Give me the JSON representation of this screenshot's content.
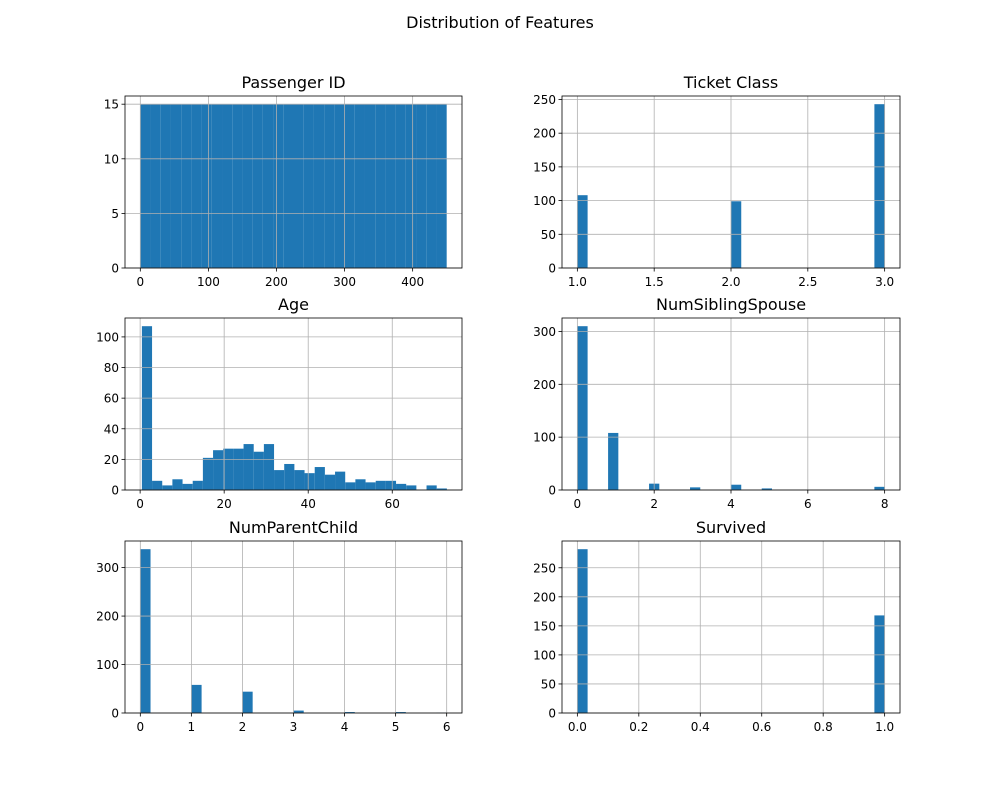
{
  "figure": {
    "title": "Distribution of Features"
  },
  "colors": {
    "bar": "#1f77b4",
    "grid": "#b0b0b0",
    "axis": "#000000"
  },
  "chart_data": [
    {
      "type": "bar",
      "title": "Passenger ID",
      "grid": true,
      "xlim": [
        -22.5,
        472.5
      ],
      "ylim": [
        0,
        15.75
      ],
      "xticks": [
        0,
        100,
        200,
        300,
        400
      ],
      "xticklabels": [
        "0",
        "100",
        "200",
        "300",
        "400"
      ],
      "yticks": [
        0,
        5,
        10,
        15
      ],
      "yticklabels": [
        "0",
        "5",
        "10",
        "15"
      ],
      "bin_range": [
        0,
        450
      ],
      "values": [
        15,
        15,
        15,
        15,
        15,
        15,
        15,
        15,
        15,
        15,
        15,
        15,
        15,
        15,
        15,
        15,
        15,
        15,
        15,
        15,
        15,
        15,
        15,
        15,
        15,
        15,
        15,
        15,
        15,
        15
      ]
    },
    {
      "type": "bar",
      "title": "Ticket Class",
      "grid": true,
      "xlim": [
        0.9,
        3.1
      ],
      "ylim": [
        0,
        255.15
      ],
      "xticks": [
        1.0,
        1.5,
        2.0,
        2.5,
        3.0
      ],
      "xticklabels": [
        "1.0",
        "1.5",
        "2.0",
        "2.5",
        "3.0"
      ],
      "yticks": [
        0,
        50,
        100,
        150,
        200,
        250
      ],
      "yticklabels": [
        "0",
        "50",
        "100",
        "150",
        "200",
        "250"
      ],
      "bin_range": [
        1,
        3
      ],
      "values": [
        108,
        0,
        0,
        0,
        0,
        0,
        0,
        0,
        0,
        0,
        0,
        0,
        0,
        0,
        0,
        99,
        0,
        0,
        0,
        0,
        0,
        0,
        0,
        0,
        0,
        0,
        0,
        0,
        0,
        243
      ]
    },
    {
      "type": "bar",
      "title": "Age",
      "grid": true,
      "xlim": [
        -3.6,
        76.6
      ],
      "ylim": [
        0,
        112.35
      ],
      "xticks": [
        0,
        20,
        40,
        60
      ],
      "xticklabels": [
        "0",
        "20",
        "40",
        "60"
      ],
      "yticks": [
        0,
        20,
        40,
        60,
        80,
        100
      ],
      "yticklabels": [
        "0",
        "20",
        "40",
        "60",
        "80",
        "100"
      ],
      "bin_range": [
        0.42,
        73.0
      ],
      "values": [
        107,
        6,
        3,
        7,
        4,
        6,
        21,
        26,
        27,
        27,
        30,
        25,
        30,
        13,
        17,
        13,
        11,
        15,
        10,
        12,
        5,
        7,
        5,
        6,
        6,
        4,
        3,
        0,
        3,
        1
      ]
    },
    {
      "type": "bar",
      "title": "NumSiblingSpouse",
      "grid": true,
      "xlim": [
        -0.4,
        8.4
      ],
      "ylim": [
        0,
        325.5
      ],
      "xticks": [
        0,
        2,
        4,
        6,
        8
      ],
      "xticklabels": [
        "0",
        "2",
        "4",
        "6",
        "8"
      ],
      "yticks": [
        0,
        100,
        200,
        300
      ],
      "yticklabels": [
        "0",
        "100",
        "200",
        "300"
      ],
      "bin_range": [
        0,
        8
      ],
      "values": [
        310,
        0,
        0,
        108,
        0,
        0,
        0,
        12,
        0,
        0,
        0,
        5,
        0,
        0,
        0,
        10,
        0,
        0,
        3,
        0,
        0,
        0,
        0,
        0,
        0,
        0,
        0,
        0,
        0,
        6
      ]
    },
    {
      "type": "bar",
      "title": "NumParentChild",
      "grid": true,
      "xlim": [
        -0.3,
        6.3
      ],
      "ylim": [
        0,
        354.9
      ],
      "xticks": [
        0,
        1,
        2,
        3,
        4,
        5,
        6
      ],
      "xticklabels": [
        "0",
        "1",
        "2",
        "3",
        "4",
        "5",
        "6"
      ],
      "yticks": [
        0,
        100,
        200,
        300
      ],
      "yticklabels": [
        "0",
        "100",
        "200",
        "300"
      ],
      "bin_range": [
        0,
        6
      ],
      "values": [
        338,
        0,
        0,
        0,
        0,
        58,
        0,
        0,
        0,
        0,
        44,
        0,
        0,
        0,
        0,
        5,
        0,
        0,
        0,
        0,
        2,
        0,
        0,
        0,
        0,
        2,
        0,
        0,
        0,
        1
      ]
    },
    {
      "type": "bar",
      "title": "Survived",
      "grid": true,
      "xlim": [
        -0.05,
        1.05
      ],
      "ylim": [
        0,
        296.1
      ],
      "xticks": [
        0.0,
        0.2,
        0.4,
        0.6,
        0.8,
        1.0
      ],
      "xticklabels": [
        "0.0",
        "0.2",
        "0.4",
        "0.6",
        "0.8",
        "1.0"
      ],
      "yticks": [
        0,
        50,
        100,
        150,
        200,
        250
      ],
      "yticklabels": [
        "0",
        "50",
        "100",
        "150",
        "200",
        "250"
      ],
      "bin_range": [
        0,
        1
      ],
      "values": [
        282,
        0,
        0,
        0,
        0,
        0,
        0,
        0,
        0,
        0,
        0,
        0,
        0,
        0,
        0,
        0,
        0,
        0,
        0,
        0,
        0,
        0,
        0,
        0,
        0,
        0,
        0,
        0,
        0,
        168
      ]
    }
  ]
}
